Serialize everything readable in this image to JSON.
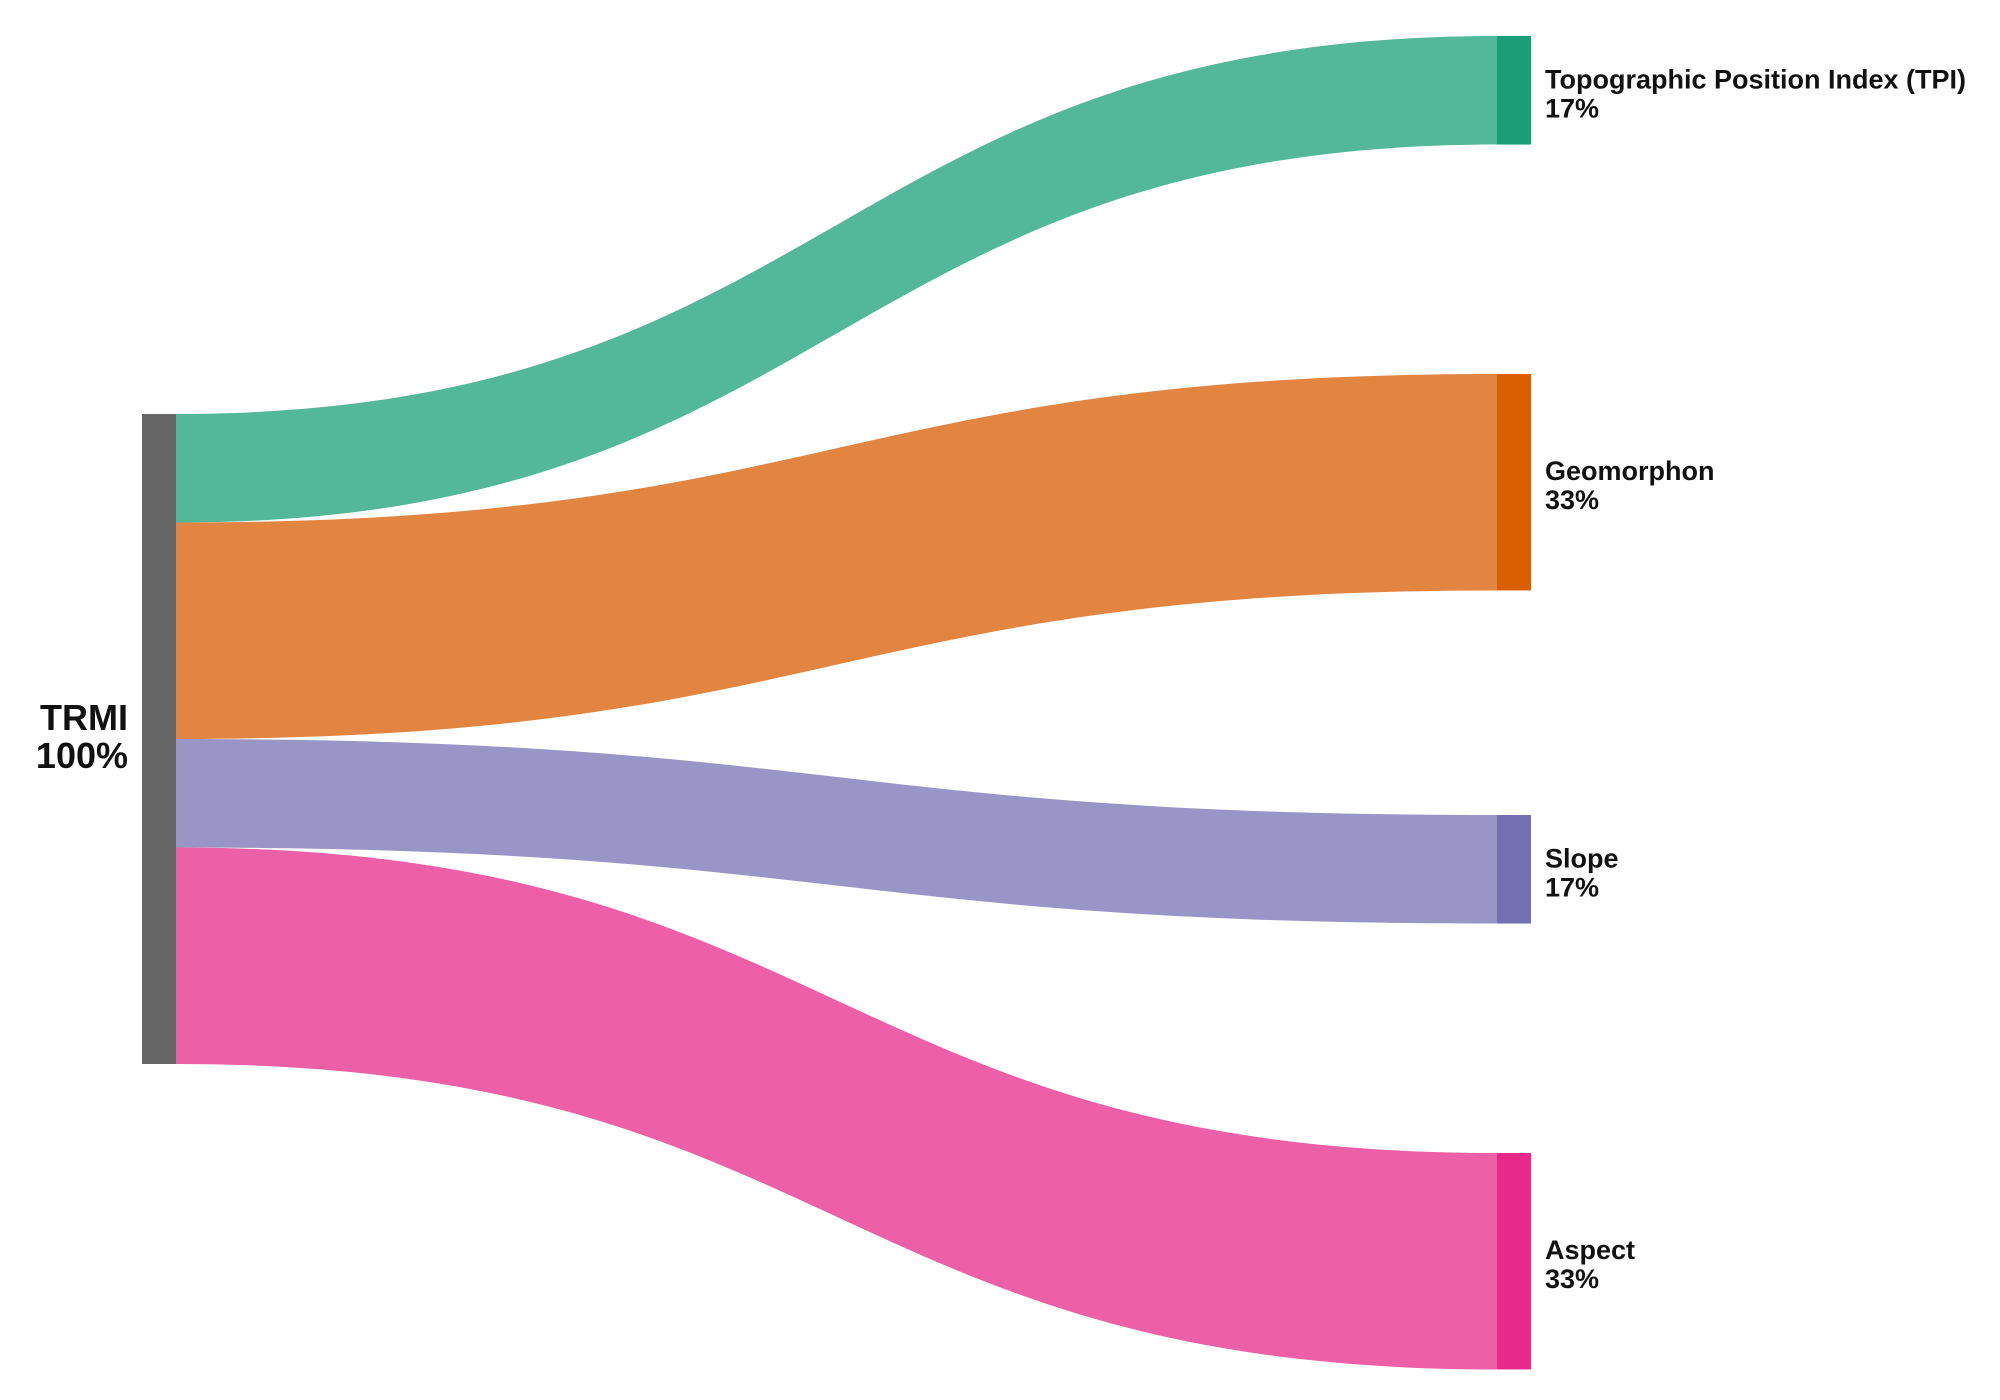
{
  "diagram": {
    "type": "sankey",
    "source": {
      "id": "trmi",
      "name": "TRMI",
      "percent_label": "100%",
      "color": "#666666"
    },
    "targets": [
      {
        "id": "tpi",
        "name": "Topographic Position Index (TPI)",
        "percent_label": "17%",
        "share": 0.167,
        "node_color": "#1b9e77",
        "flow_color": "#53b799"
      },
      {
        "id": "geomorphon",
        "name": "Geomorphon",
        "percent_label": "33%",
        "share": 0.333,
        "node_color": "#d95f02",
        "flow_color": "#e28541"
      },
      {
        "id": "slope",
        "name": "Slope",
        "percent_label": "17%",
        "share": 0.167,
        "node_color": "#7570b3",
        "flow_color": "#9995c6"
      },
      {
        "id": "aspect",
        "name": "Aspect",
        "percent_label": "33%",
        "share": 0.333,
        "node_color": "#e7298a",
        "flow_color": "#ed5fa6"
      }
    ]
  }
}
